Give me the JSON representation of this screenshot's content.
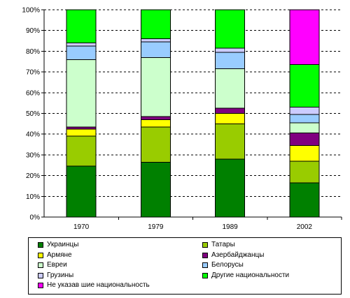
{
  "chart_data": {
    "type": "bar",
    "stacked": true,
    "percent": true,
    "categories": [
      "1970",
      "1979",
      "1989",
      "2002"
    ],
    "ylim": [
      0,
      100
    ],
    "yticks": [
      "0%",
      "10%",
      "20%",
      "30%",
      "40%",
      "50%",
      "60%",
      "70%",
      "80%",
      "90%",
      "100%"
    ],
    "grid": "horizontal-dashed",
    "legend_position": "bottom",
    "series": [
      {
        "name": "Украинцы",
        "color": "#008000",
        "values": [
          24.5,
          26.5,
          28,
          16.5
        ]
      },
      {
        "name": "Татары",
        "color": "#99CC00",
        "values": [
          14.5,
          17,
          17,
          10.5
        ]
      },
      {
        "name": "Армяне",
        "color": "#FFFF00",
        "values": [
          3.5,
          3.5,
          5,
          7.5
        ]
      },
      {
        "name": "Азербайджанцы",
        "color": "#800080",
        "values": [
          1,
          1.5,
          2.5,
          6
        ]
      },
      {
        "name": "Евреи",
        "color": "#CCFFCC",
        "values": [
          32.5,
          28.5,
          19,
          5
        ]
      },
      {
        "name": "Белорусы",
        "color": "#99CCFF",
        "values": [
          6.5,
          7.5,
          8,
          4
        ]
      },
      {
        "name": "Грузины",
        "color": "#CCCCFF",
        "values": [
          1.5,
          1.5,
          2,
          3.5
        ]
      },
      {
        "name": "Другие национальности",
        "color": "#00FF00",
        "values": [
          16,
          14,
          18.5,
          20.5
        ]
      },
      {
        "name": "Не указав шие национальность",
        "color": "#FF00FF",
        "values": [
          0,
          0,
          0,
          26.5
        ]
      }
    ]
  }
}
